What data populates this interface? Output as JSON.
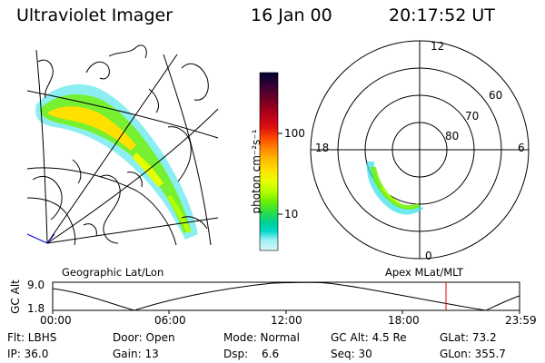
{
  "header": {
    "instrument": "Ultraviolet Imager",
    "date": "16 Jan 00",
    "time": "20:17:52 UT"
  },
  "colorbar": {
    "unit_label": "photon cm⁻²s⁻¹",
    "ticks": [
      "100",
      "10"
    ],
    "colors": [
      "#000030",
      "#3a0033",
      "#7a0022",
      "#b8001a",
      "#e00f0f",
      "#ff4a00",
      "#ff8800",
      "#ffbb00",
      "#ffe000",
      "#e6ff00",
      "#b4ff00",
      "#70f000",
      "#30e040",
      "#00d090",
      "#00d8c8",
      "#30e0e8",
      "#9aeef2",
      "#d8f6f8"
    ]
  },
  "geo_panel": {
    "caption": "Geographic Lat/Lon"
  },
  "polar_panel": {
    "caption": "Apex MLat/MLT",
    "mlt_labels": {
      "top": "12",
      "left": "18",
      "right": "6",
      "bottom": "0"
    },
    "lat_labels": [
      "60",
      "70",
      "80"
    ]
  },
  "altitude_plot": {
    "ylabel": "GC Alt",
    "yticks": [
      "9.0",
      "1.8"
    ],
    "xticks": [
      "00:00",
      "06:00",
      "12:00",
      "18:00",
      "23:59"
    ],
    "marker_color": "#e00000"
  },
  "status": {
    "flt": "Flt: LBHS",
    "door": "Door: Open",
    "mode": "Mode: Normal",
    "gc_alt": "GC Alt: 4.5 Re",
    "glat": "GLat: 73.2",
    "ip": "IP: 36.0",
    "gain": "Gain: 13",
    "dsp_label": "Dsp:",
    "dsp_value": "6.6",
    "seq": "Seq: 30",
    "glon": "GLon: 355.7"
  }
}
